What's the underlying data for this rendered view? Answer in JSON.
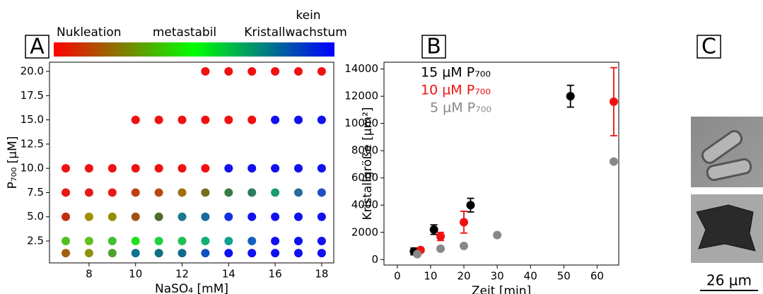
{
  "chart_data": [
    {
      "type": "scatter",
      "panel": "A",
      "xlabel": "NaSO₄ [mM]",
      "ylabel": "P₇₀₀ [µM]",
      "xlim": [
        6.3,
        18.52
      ],
      "ylim": [
        0.24,
        20.95
      ],
      "xticks": [
        8,
        10,
        12,
        14,
        16,
        18
      ],
      "yticks": [
        2.5,
        5.0,
        7.5,
        10.0,
        12.5,
        15.0,
        17.5,
        20.0
      ],
      "ytick_labels": [
        "2.5",
        "5.0",
        "7.5",
        "10.0",
        "12.5",
        "15.0",
        "17.5",
        "20.0"
      ],
      "colorbar_labels": [
        "Nukleation",
        "metastabil",
        "kein Kristallwachstum"
      ],
      "colorbar_colors": [
        "#ff0000",
        "#00ff00",
        "#0000ff"
      ],
      "x": [
        13,
        14,
        15,
        16,
        17,
        18,
        10,
        11,
        12,
        13,
        14,
        15,
        16,
        17,
        18,
        7,
        8,
        9,
        10,
        11,
        12,
        13,
        14,
        15,
        16,
        17,
        18,
        7,
        8,
        9,
        10,
        11,
        12,
        13,
        14,
        15,
        16,
        17,
        18,
        7,
        8,
        9,
        10,
        11,
        12,
        13,
        14,
        15,
        16,
        17,
        18,
        7,
        8,
        9,
        10,
        11,
        12,
        13,
        14,
        15,
        16,
        17,
        18,
        7,
        8,
        9,
        10,
        11,
        12,
        13,
        14,
        15,
        16,
        17,
        18
      ],
      "y": [
        20,
        20,
        20,
        20,
        20,
        20,
        15,
        15,
        15,
        15,
        15,
        15,
        15,
        15,
        15,
        10,
        10,
        10,
        10,
        10,
        10,
        10,
        10,
        10,
        10,
        10,
        10,
        7.5,
        7.5,
        7.5,
        7.5,
        7.5,
        7.5,
        7.5,
        7.5,
        7.5,
        7.5,
        7.5,
        7.5,
        5,
        5,
        5,
        5,
        5,
        5,
        5,
        5,
        5,
        5,
        5,
        5,
        2.5,
        2.5,
        2.5,
        2.5,
        2.5,
        2.5,
        2.5,
        2.5,
        2.5,
        2.5,
        2.5,
        2.5,
        1.25,
        1.25,
        1.25,
        1.25,
        1.25,
        1.25,
        1.25,
        1.25,
        1.25,
        1.25,
        1.25,
        1.25
      ],
      "colors": [
        "#f01010",
        "#f01010",
        "#f01010",
        "#f01010",
        "#f01010",
        "#f01010",
        "#f01010",
        "#f01010",
        "#f01010",
        "#f01010",
        "#f01010",
        "#f01010",
        "#1010f0",
        "#1010f0",
        "#1010f0",
        "#f01010",
        "#f01010",
        "#f01010",
        "#f01010",
        "#f01010",
        "#f01010",
        "#f01010",
        "#1010f0",
        "#1010f0",
        "#1010f0",
        "#1010f0",
        "#1010f0",
        "#e81818",
        "#e81818",
        "#e81818",
        "#c04010",
        "#b84a10",
        "#a07010",
        "#707020",
        "#3a7a40",
        "#2a7a60",
        "#1a9a70",
        "#2a6a9a",
        "#2050c0",
        "#c03010",
        "#a09000",
        "#909000",
        "#a05010",
        "#506a30",
        "#1a7a90",
        "#1a6aa0",
        "#1030e0",
        "#1010f0",
        "#1010f0",
        "#1010f0",
        "#1010f0",
        "#50c020",
        "#60c020",
        "#40c030",
        "#20e020",
        "#20d040",
        "#20c050",
        "#10b070",
        "#10a090",
        "#1060c0",
        "#1010f0",
        "#1010f0",
        "#1010f0",
        "#a06010",
        "#909010",
        "#50a030",
        "#107090",
        "#107080",
        "#106a90",
        "#1050c0",
        "#1010f0",
        "#1010f0",
        "#1010f0",
        "#1010f0",
        "#1010f0"
      ]
    },
    {
      "type": "errorbar",
      "panel": "B",
      "xlabel": "Zeit [min]",
      "ylabel": "Kristallgröße [µm²]",
      "xlim": [
        -4,
        66.5
      ],
      "ylim": [
        -400,
        14500
      ],
      "xticks": [
        0,
        10,
        20,
        30,
        40,
        50,
        60
      ],
      "yticks": [
        0,
        2000,
        4000,
        6000,
        8000,
        10000,
        12000,
        14000
      ],
      "series": [
        {
          "name": "15 µM P₇₀₀",
          "color": "#000000",
          "x": [
            5,
            11,
            22,
            52
          ],
          "values": [
            600,
            2200,
            4000,
            12000
          ],
          "errors": [
            250,
            350,
            500,
            800
          ]
        },
        {
          "name": "10 µM P₇₀₀",
          "color": "#ee1111",
          "x": [
            7,
            13,
            20,
            65
          ],
          "values": [
            700,
            1700,
            2750,
            11600
          ],
          "errors": [
            150,
            300,
            800,
            2500
          ]
        },
        {
          "name": "5 µM P₇₀₀",
          "color": "#888888",
          "x": [
            6,
            13,
            20,
            30,
            65
          ],
          "values": [
            400,
            800,
            1000,
            1800,
            7200
          ]
        }
      ]
    },
    {
      "type": "image",
      "panel": "C",
      "scale_label": "26 µm"
    }
  ]
}
